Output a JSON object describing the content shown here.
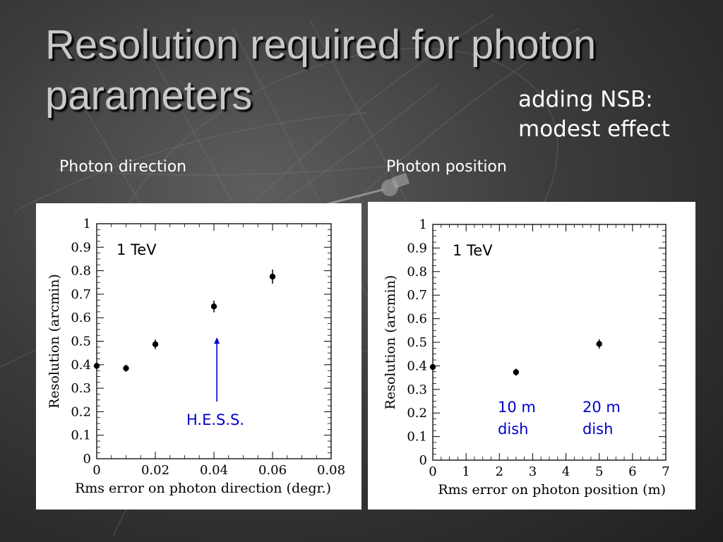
{
  "slide": {
    "title": "Resolution required for photon parameters",
    "note_line1": "adding NSB:",
    "note_line2": "modest effect",
    "caption_left": "Photon direction",
    "caption_right": "Photon position"
  },
  "colors": {
    "annotation": "#0000cc",
    "points": "#000000",
    "title": "#c9c9c9"
  },
  "chart_data": [
    {
      "type": "scatter",
      "xlabel": "Rms error on photon direction (degr.)",
      "ylabel": "Resolution (arcmin)",
      "xlim": [
        0,
        0.08
      ],
      "ylim": [
        0,
        1
      ],
      "x_ticks": [
        "0",
        "0.02",
        "0.04",
        "0.06",
        "0.08"
      ],
      "y_ticks": [
        "0",
        "0.1",
        "0.2",
        "0.3",
        "0.4",
        "0.5",
        "0.6",
        "0.7",
        "0.8",
        "0.9",
        "1"
      ],
      "energy_label": "1 TeV",
      "series": [
        {
          "x": [
            0,
            0.01,
            0.02,
            0.04,
            0.06
          ],
          "y": [
            0.395,
            0.385,
            0.487,
            0.648,
            0.775
          ],
          "err": [
            0.015,
            0.015,
            0.02,
            0.025,
            0.03
          ]
        }
      ],
      "annotations": [
        {
          "text": "H.E.S.S.",
          "x": 0.041
        }
      ]
    },
    {
      "type": "scatter",
      "xlabel": "Rms error on photon position (m)",
      "ylabel": "Resolution (arcmin)",
      "xlim": [
        0,
        7
      ],
      "ylim": [
        0,
        1
      ],
      "x_ticks": [
        "0",
        "1",
        "2",
        "3",
        "4",
        "5",
        "6",
        "7"
      ],
      "y_ticks": [
        "0",
        "0.1",
        "0.2",
        "0.3",
        "0.4",
        "0.5",
        "0.6",
        "0.7",
        "0.8",
        "0.9",
        "1"
      ],
      "energy_label": "1 TeV",
      "series": [
        {
          "x": [
            0,
            2.5,
            5
          ],
          "y": [
            0.395,
            0.373,
            0.493
          ],
          "err": [
            0.01,
            0.015,
            0.02
          ]
        }
      ],
      "annotations": [
        {
          "line1": "10 m",
          "line2": "dish"
        },
        {
          "line1": "20 m",
          "line2": "dish"
        }
      ]
    }
  ]
}
